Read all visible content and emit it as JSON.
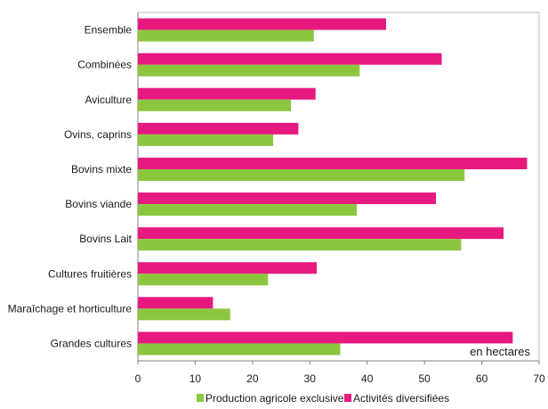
{
  "chart_data": {
    "type": "bar",
    "orientation": "horizontal",
    "categories": [
      "Ensemble",
      "Combinées",
      "Aviculture",
      "Ovins, caprins",
      "Bovins mixte",
      "Bovins viande",
      "Bovins Lait",
      "Cultures fruitières",
      "Maraîchage et horticulture",
      "Grandes cultures"
    ],
    "series": [
      {
        "name": "Activités diversifiées",
        "color": "#e6197f",
        "values": [
          43.3,
          53.0,
          31.0,
          28.0,
          67.9,
          52.0,
          63.8,
          31.2,
          13.1,
          65.4
        ]
      },
      {
        "name": "Production agricole exclusive",
        "color": "#8cc63f",
        "values": [
          30.7,
          38.7,
          26.7,
          23.6,
          57.0,
          38.2,
          56.4,
          22.7,
          16.1,
          35.3
        ]
      }
    ],
    "xlim": [
      0,
      70
    ],
    "xticks": [
      "0",
      "10",
      "20",
      "30",
      "40",
      "50",
      "60",
      "70"
    ],
    "annotation": "en hectares",
    "legend": [
      {
        "label": "Production agricole exclusive",
        "color": "#8cc63f"
      },
      {
        "label": "Activités diversifiées",
        "color": "#e6197f"
      }
    ],
    "legend_position": "bottom",
    "grid": false
  }
}
